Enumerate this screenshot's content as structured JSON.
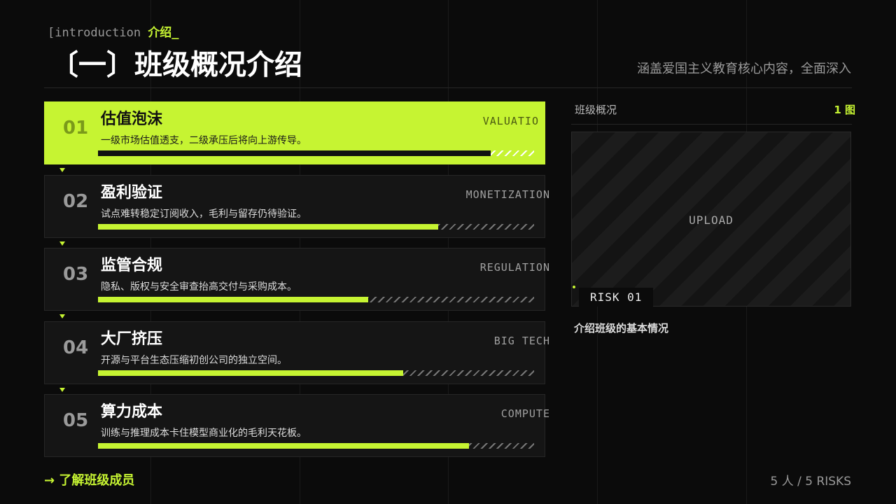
{
  "header": {
    "kicker": "[introduction",
    "kicker_accent": "介绍_",
    "title": "〔一〕班级概况介绍",
    "subtitle": "涵盖爱国主义教育核心内容，全面深入"
  },
  "items": [
    {
      "number": "01",
      "title": "估值泡沫",
      "tag": "VALUATIO",
      "description": "一级市场估值透支，二级承压后将向上游传导。",
      "progress": 90
    },
    {
      "number": "02",
      "title": "盈利验证",
      "tag": "MONETIZATION",
      "description": "试点难转稳定订阅收入，毛利与留存仍待验证。",
      "progress": 78
    },
    {
      "number": "03",
      "title": "监管合规",
      "tag": "REGULATION",
      "description": "隐私、版权与安全审查抬高交付与采购成本。",
      "progress": 62
    },
    {
      "number": "04",
      "title": "大厂挤压",
      "tag": "BIG TECH",
      "description": "开源与平台生态压缩初创公司的独立空间。",
      "progress": 70
    },
    {
      "number": "05",
      "title": "算力成本",
      "tag": "COMPUTE",
      "description": "训练与推理成本卡住模型商业化的毛利天花板。",
      "progress": 85
    }
  ],
  "panel": {
    "label": "班级概况",
    "count": "1 图",
    "upload": "UPLOAD",
    "badge": "RISK 01",
    "caption": "介绍班级的基本情况"
  },
  "footer": {
    "link": "→ 了解班级成员",
    "summary": "5 人 / 5 RISKS"
  }
}
